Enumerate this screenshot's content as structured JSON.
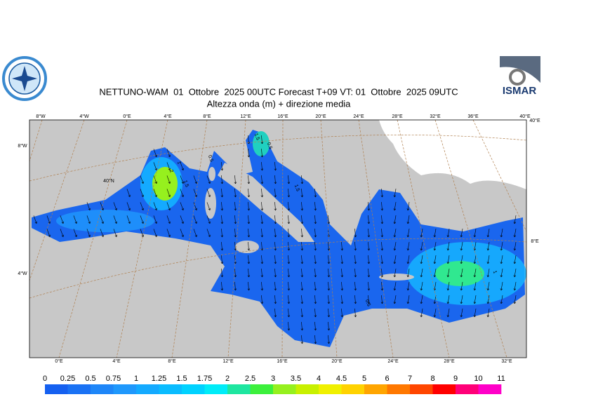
{
  "title": "NETTUNO-WAM  01  Ottobre  2025 00UTC Forecast T+09 VT: 01  Ottobre  2025 09UTC",
  "subtitle": "Altezza onda (m) + direzione media",
  "logo_text": "ISMAR",
  "map": {
    "top_labels": [
      "8°W",
      "4°W",
      "0°E",
      "4°E",
      "8°E",
      "12°E",
      "16°E",
      "20°E",
      "24°E",
      "28°E",
      "32°E",
      "36°E",
      "40°E"
    ],
    "bottom_labels": [
      "0°E",
      "4°E",
      "8°E",
      "12°E",
      "16°E",
      "20°E",
      "24°E",
      "28°E",
      "32°E"
    ],
    "left_labels": [
      "8°W",
      "40°N",
      "4°W"
    ],
    "right_labels": [
      "40°E",
      "8°E"
    ],
    "contour_labels": [
      1,
      2,
      1.5,
      0.5,
      1.5,
      0.5,
      1.5,
      0.5,
      1
    ]
  },
  "legend": {
    "ticks": [
      0,
      0.25,
      0.5,
      0.75,
      1,
      1.25,
      1.5,
      1.75,
      2,
      2.5,
      3,
      3.5,
      4,
      4.5,
      5,
      6,
      7,
      8,
      9,
      10,
      11
    ],
    "colors": [
      "#1560f0",
      "#1a72f4",
      "#1e86f8",
      "#1f98fc",
      "#14aaff",
      "#0abcff",
      "#00d2ff",
      "#00ecf8",
      "#1ee6a0",
      "#3cf03c",
      "#96f01e",
      "#c8f000",
      "#f0f000",
      "#ffd200",
      "#ffa500",
      "#ff7800",
      "#ff4600",
      "#ff0000",
      "#ff0078",
      "#ff00c8"
    ]
  }
}
